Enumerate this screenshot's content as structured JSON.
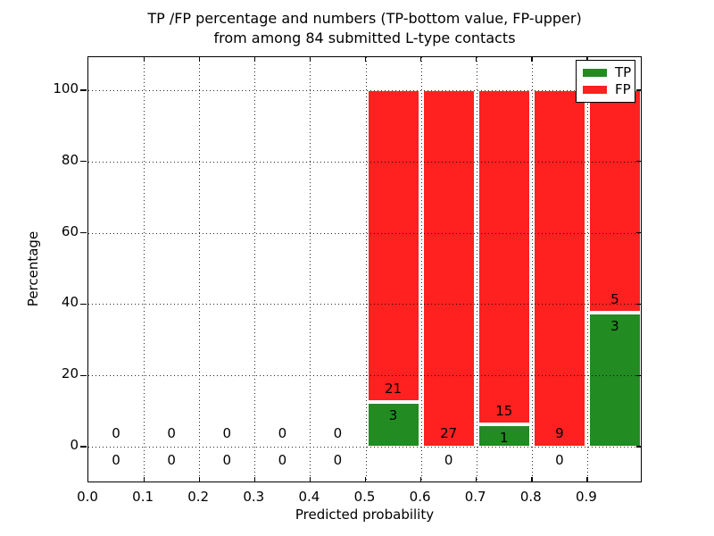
{
  "figure": {
    "title_line1": "TP /FP percentage and numbers (TP-bottom value, FP-upper)",
    "title_line2": "from among 84 submitted L-type contacts"
  },
  "chart_data": {
    "type": "bar",
    "subtype": "stacked-percentage-histogram",
    "title": "TP /FP percentage and numbers (TP-bottom value, FP-upper) from among 84 submitted L-type contacts",
    "xlabel": "Predicted probability",
    "ylabel": "Percentage",
    "xlim": [
      0.0,
      1.0
    ],
    "ylim": [
      -10,
      110
    ],
    "grid": "dotted",
    "legend_position": "upper right",
    "total_contacts": 84,
    "colors": {
      "tp": "#228b22",
      "fp": "#ff2020",
      "bar_edge": "#ffffff"
    },
    "legend": [
      {
        "label": "TP",
        "color_key": "tp"
      },
      {
        "label": "FP",
        "color_key": "fp"
      }
    ],
    "xticks": [
      {
        "v": 0.0,
        "label": "0.0"
      },
      {
        "v": 0.1,
        "label": "0.1"
      },
      {
        "v": 0.2,
        "label": "0.2"
      },
      {
        "v": 0.3,
        "label": "0.3"
      },
      {
        "v": 0.4,
        "label": "0.4"
      },
      {
        "v": 0.5,
        "label": "0.5"
      },
      {
        "v": 0.6,
        "label": "0.6"
      },
      {
        "v": 0.7,
        "label": "0.7"
      },
      {
        "v": 0.8,
        "label": "0.8"
      },
      {
        "v": 0.9,
        "label": "0.9"
      }
    ],
    "yticks": [
      {
        "v": 0,
        "label": "0"
      },
      {
        "v": 20,
        "label": "20"
      },
      {
        "v": 40,
        "label": "40"
      },
      {
        "v": 60,
        "label": "60"
      },
      {
        "v": 80,
        "label": "80"
      },
      {
        "v": 100,
        "label": "100"
      }
    ],
    "bins": [
      {
        "range": [
          0.0,
          0.1
        ],
        "tp": 0,
        "fp": 0,
        "tp_pct": 0,
        "fp_pct": 0
      },
      {
        "range": [
          0.1,
          0.2
        ],
        "tp": 0,
        "fp": 0,
        "tp_pct": 0,
        "fp_pct": 0
      },
      {
        "range": [
          0.2,
          0.3
        ],
        "tp": 0,
        "fp": 0,
        "tp_pct": 0,
        "fp_pct": 0
      },
      {
        "range": [
          0.3,
          0.4
        ],
        "tp": 0,
        "fp": 0,
        "tp_pct": 0,
        "fp_pct": 0
      },
      {
        "range": [
          0.4,
          0.5
        ],
        "tp": 0,
        "fp": 0,
        "tp_pct": 0,
        "fp_pct": 0
      },
      {
        "range": [
          0.5,
          0.6
        ],
        "tp": 3,
        "fp": 21,
        "tp_pct": 12.5,
        "fp_pct": 87.5
      },
      {
        "range": [
          0.6,
          0.7
        ],
        "tp": 0,
        "fp": 27,
        "tp_pct": 0,
        "fp_pct": 100
      },
      {
        "range": [
          0.7,
          0.8
        ],
        "tp": 1,
        "fp": 15,
        "tp_pct": 6.25,
        "fp_pct": 93.75
      },
      {
        "range": [
          0.8,
          0.9
        ],
        "tp": 0,
        "fp": 9,
        "tp_pct": 0,
        "fp_pct": 100
      },
      {
        "range": [
          0.9,
          1.0
        ],
        "tp": 3,
        "fp": 5,
        "tp_pct": 37.5,
        "fp_pct": 62.5
      }
    ]
  }
}
